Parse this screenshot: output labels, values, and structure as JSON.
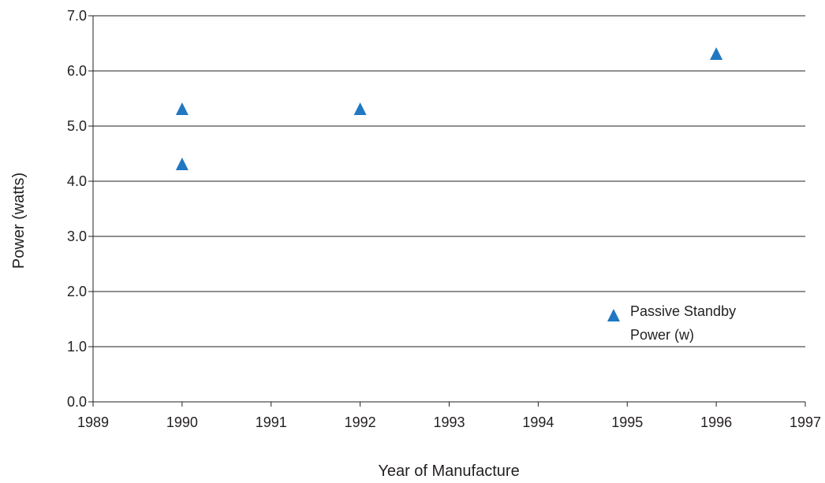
{
  "chart_data": {
    "type": "scatter",
    "title": "",
    "xlabel": "Year of Manufacture",
    "ylabel": "Power (watts)",
    "xlim": [
      1989,
      1997
    ],
    "ylim": [
      0,
      7
    ],
    "x_ticks": [
      "1989",
      "1990",
      "1991",
      "1992",
      "1993",
      "1994",
      "1995",
      "1996",
      "1997"
    ],
    "y_ticks": [
      "0.0",
      "1.0",
      "2.0",
      "3.0",
      "4.0",
      "5.0",
      "6.0",
      "7.0"
    ],
    "grid": "horizontal",
    "legend_position": "bottom-right",
    "series": [
      {
        "name": "Passive Standby Power (w)",
        "legend_lines": [
          "Passive Standby",
          "Power (w)"
        ],
        "marker": "triangle",
        "color": "#1f78c1",
        "points": [
          {
            "x": 1990,
            "y": 5.3
          },
          {
            "x": 1990,
            "y": 4.3
          },
          {
            "x": 1992,
            "y": 5.3
          },
          {
            "x": 1996,
            "y": 6.3
          }
        ]
      }
    ]
  }
}
